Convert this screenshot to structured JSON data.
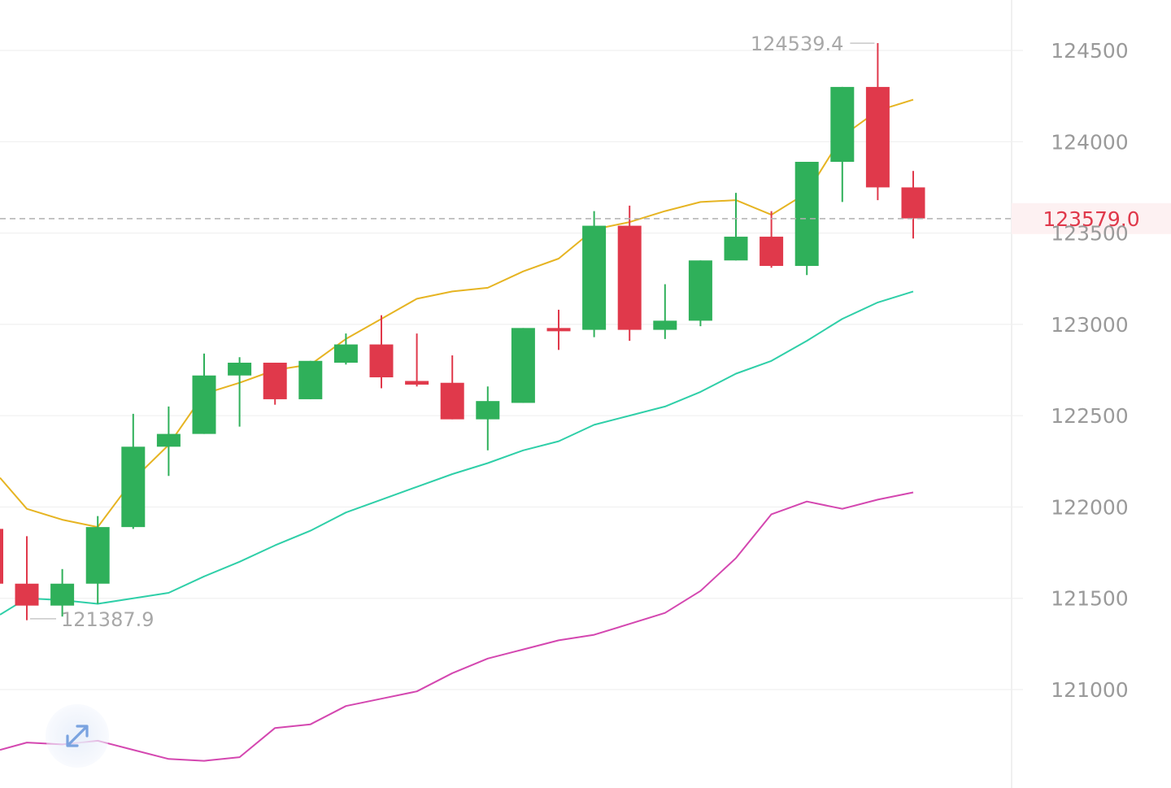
{
  "chart_data": {
    "type": "candlestick",
    "y_axis": {
      "position": "right",
      "range": [
        120700,
        124900
      ],
      "ticks": [
        124500,
        124000,
        123500,
        123000,
        122500,
        122000,
        121500,
        121000
      ]
    },
    "current_price": {
      "label": "123579.0",
      "value": 123579.0,
      "color": "#e0394b"
    },
    "high_marker": {
      "label": "124539.4",
      "value": 124539.4,
      "index": 24
    },
    "low_marker": {
      "label": "121387.9",
      "value": 121387.9,
      "index": 0
    },
    "colors": {
      "up": "#2fb05a",
      "down": "#e0394b",
      "ma_fast": "#e6b422",
      "ma_mid": "#2fcfa8",
      "ma_slow": "#d447b0",
      "grid": "#f0f0f0",
      "price_line": "#b0b0b0"
    },
    "candles": [
      {
        "open": 121580,
        "close": 121460,
        "high": 121840,
        "low": 121380
      },
      {
        "open": 121460,
        "close": 121580,
        "high": 121660,
        "low": 121400
      },
      {
        "open": 121580,
        "close": 121890,
        "high": 121950,
        "low": 121470
      },
      {
        "open": 121890,
        "close": 122330,
        "high": 122510,
        "low": 121880
      },
      {
        "open": 122330,
        "close": 122400,
        "high": 122550,
        "low": 122170
      },
      {
        "open": 122400,
        "close": 122720,
        "high": 122840,
        "low": 122400
      },
      {
        "open": 122720,
        "close": 122790,
        "high": 122820,
        "low": 122440
      },
      {
        "open": 122790,
        "close": 122590,
        "high": 122790,
        "low": 122560
      },
      {
        "open": 122590,
        "close": 122800,
        "high": 122800,
        "low": 122590
      },
      {
        "open": 122790,
        "close": 122890,
        "high": 122950,
        "low": 122780
      },
      {
        "open": 122890,
        "close": 122710,
        "high": 123050,
        "low": 122650
      },
      {
        "open": 122690,
        "close": 122670,
        "high": 122950,
        "low": 122660
      },
      {
        "open": 122680,
        "close": 122480,
        "high": 122830,
        "low": 122480
      },
      {
        "open": 122480,
        "close": 122580,
        "high": 122660,
        "low": 122310
      },
      {
        "open": 122570,
        "close": 122980,
        "high": 122980,
        "low": 122570
      },
      {
        "open": 122980,
        "close": 122970,
        "high": 123080,
        "low": 122860
      },
      {
        "open": 122970,
        "close": 123540,
        "high": 123620,
        "low": 122930
      },
      {
        "open": 123540,
        "close": 122970,
        "high": 123650,
        "low": 122910
      },
      {
        "open": 122970,
        "close": 123020,
        "high": 123220,
        "low": 122920
      },
      {
        "open": 123020,
        "close": 123350,
        "high": 123350,
        "low": 122990
      },
      {
        "open": 123350,
        "close": 123480,
        "high": 123720,
        "low": 123350
      },
      {
        "open": 123480,
        "close": 123320,
        "high": 123620,
        "low": 123310
      },
      {
        "open": 123320,
        "close": 123890,
        "high": 123890,
        "low": 123270
      },
      {
        "open": 123890,
        "close": 124300,
        "high": 124300,
        "low": 123670
      },
      {
        "open": 124300,
        "close": 123750,
        "high": 124540,
        "low": 123680
      },
      {
        "open": 123750,
        "close": 123580,
        "high": 123840,
        "low": 123470
      }
    ],
    "ma_fast": [
      121990,
      121930,
      121890,
      122150,
      122340,
      122620,
      122680,
      122750,
      122780,
      122920,
      123030,
      123140,
      123180,
      123200,
      123290,
      123360,
      123520,
      123560,
      123620,
      123670,
      123680,
      123600,
      123720,
      124030,
      124170,
      124230
    ],
    "ma_mid": [
      121500,
      121490,
      121470,
      121500,
      121530,
      121620,
      121700,
      121790,
      121870,
      121970,
      122040,
      122110,
      122180,
      122240,
      122310,
      122360,
      122450,
      122500,
      122550,
      122630,
      122730,
      122800,
      122910,
      123030,
      123120,
      123180
    ],
    "ma_slow": [
      120710,
      120700,
      120720,
      120670,
      120620,
      120610,
      120630,
      120790,
      120810,
      120910,
      120950,
      120990,
      121090,
      121170,
      121220,
      121270,
      121300,
      121360,
      121420,
      121540,
      121720,
      121960,
      122030,
      121990,
      122040,
      122080
    ],
    "ma_fast_head": 122160,
    "ma_mid_head": 121410,
    "ma_slow_head": 120670
  },
  "controls": {
    "expand_icon": "expand-arrows-icon"
  }
}
